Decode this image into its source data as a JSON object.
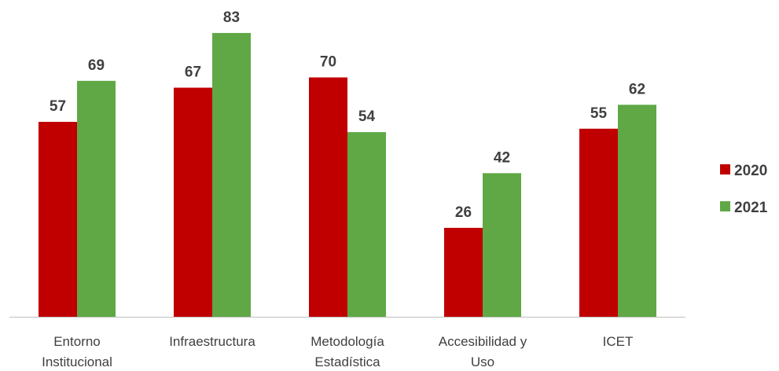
{
  "chart_data": {
    "type": "bar",
    "categories": [
      [
        "Entorno",
        "Institucional"
      ],
      [
        "Infraestructura"
      ],
      [
        "Metodología",
        "Estadística"
      ],
      [
        "Accesibilidad y",
        "Uso"
      ],
      [
        "ICET"
      ]
    ],
    "series": [
      {
        "name": "2020",
        "values": [
          57,
          67,
          70,
          26,
          55
        ],
        "color": "#C00000"
      },
      {
        "name": "2021",
        "values": [
          69,
          83,
          54,
          42,
          62
        ],
        "color": "#5FA845"
      }
    ],
    "ylim": [
      0,
      100
    ],
    "grid": false,
    "legend_position": "right",
    "axis_color": "#BFBFBF"
  }
}
